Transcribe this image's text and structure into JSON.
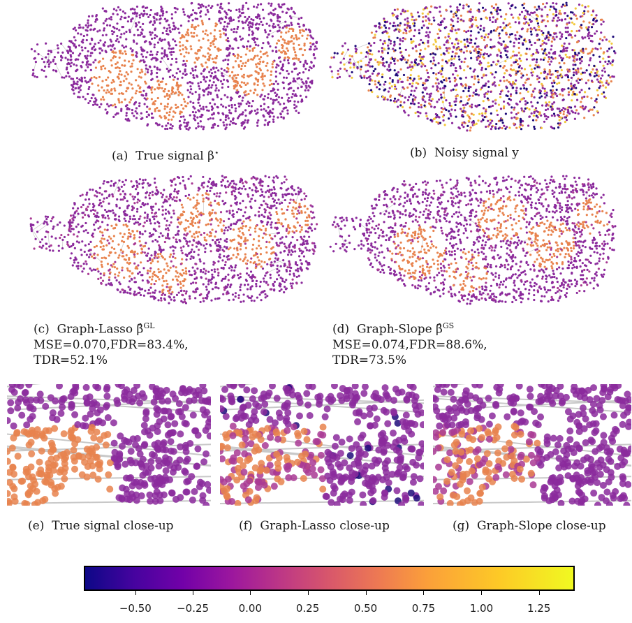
{
  "captions": {
    "a": {
      "prefix": "(a)",
      "text": "True signal β",
      "sup": "⋆"
    },
    "b": {
      "prefix": "(b)",
      "text": "Noisy signal y"
    },
    "c": {
      "prefix": "(c)",
      "text": "Graph-Lasso β̂",
      "sup": "GL",
      "line2": "MSE=0.070,FDR=83.4%,",
      "line3": "TDR=52.1%"
    },
    "d": {
      "prefix": "(d)",
      "text": "Graph-Slope β̂",
      "sup": "GS",
      "line2": "MSE=0.074,FDR=88.6%,",
      "line3": "TDR=73.5%"
    },
    "e": {
      "prefix": "(e)",
      "text": "True signal close-up"
    },
    "f": {
      "prefix": "(f)",
      "text": "Graph-Lasso close-up"
    },
    "g": {
      "prefix": "(g)",
      "text": "Graph-Slope close-up"
    }
  },
  "colorbar": {
    "colormap": "plasma",
    "ticks": [
      "−0.50",
      "−0.25",
      "0.00",
      "0.25",
      "0.50",
      "0.75",
      "1.00",
      "1.25"
    ]
  },
  "colors": {
    "dark": "#1f0c7a",
    "purple": "#8b2a9c",
    "magenta": "#a93a94",
    "orange": "#e8834e",
    "yellow": "#f2c83a",
    "edge": "#c8c8c8"
  }
}
